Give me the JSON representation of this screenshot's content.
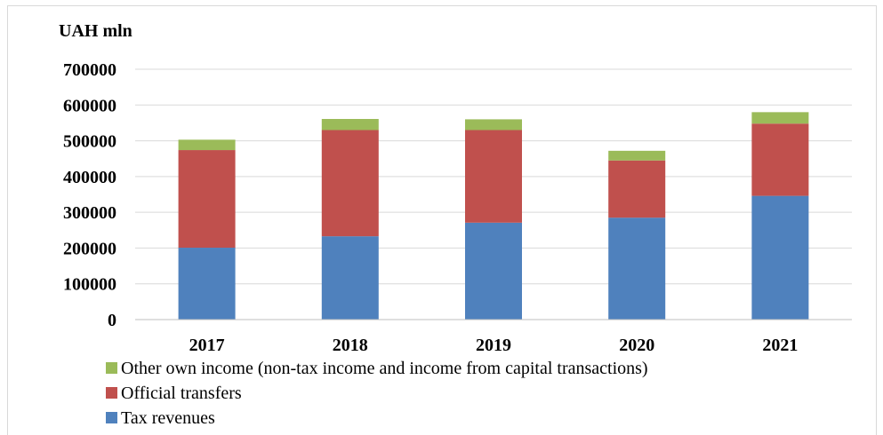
{
  "chart_data": {
    "type": "bar",
    "stacked": true,
    "title": "",
    "unit_label": "UAH mln",
    "xlabel": "",
    "ylabel": "",
    "categories": [
      "2017",
      "2018",
      "2019",
      "2020",
      "2021"
    ],
    "series": [
      {
        "name": "Tax revenues",
        "color": "#4f81bd",
        "values": [
          201000,
          233000,
          271000,
          285000,
          346000
        ]
      },
      {
        "name": "Official transfers",
        "color": "#c0504d",
        "values": [
          273000,
          297000,
          259000,
          160000,
          202000
        ]
      },
      {
        "name": "Other own income (non-tax income and income from capital transactions)",
        "color": "#9bbb59",
        "values": [
          29000,
          31000,
          30000,
          27000,
          32000
        ]
      }
    ],
    "ylim": [
      0,
      700000
    ],
    "yticks": [
      "0",
      "100000",
      "200000",
      "300000",
      "400000",
      "500000",
      "600000",
      "700000"
    ],
    "grid": true,
    "legend_position": "bottom-left",
    "legend_order": [
      2,
      1,
      0
    ]
  }
}
